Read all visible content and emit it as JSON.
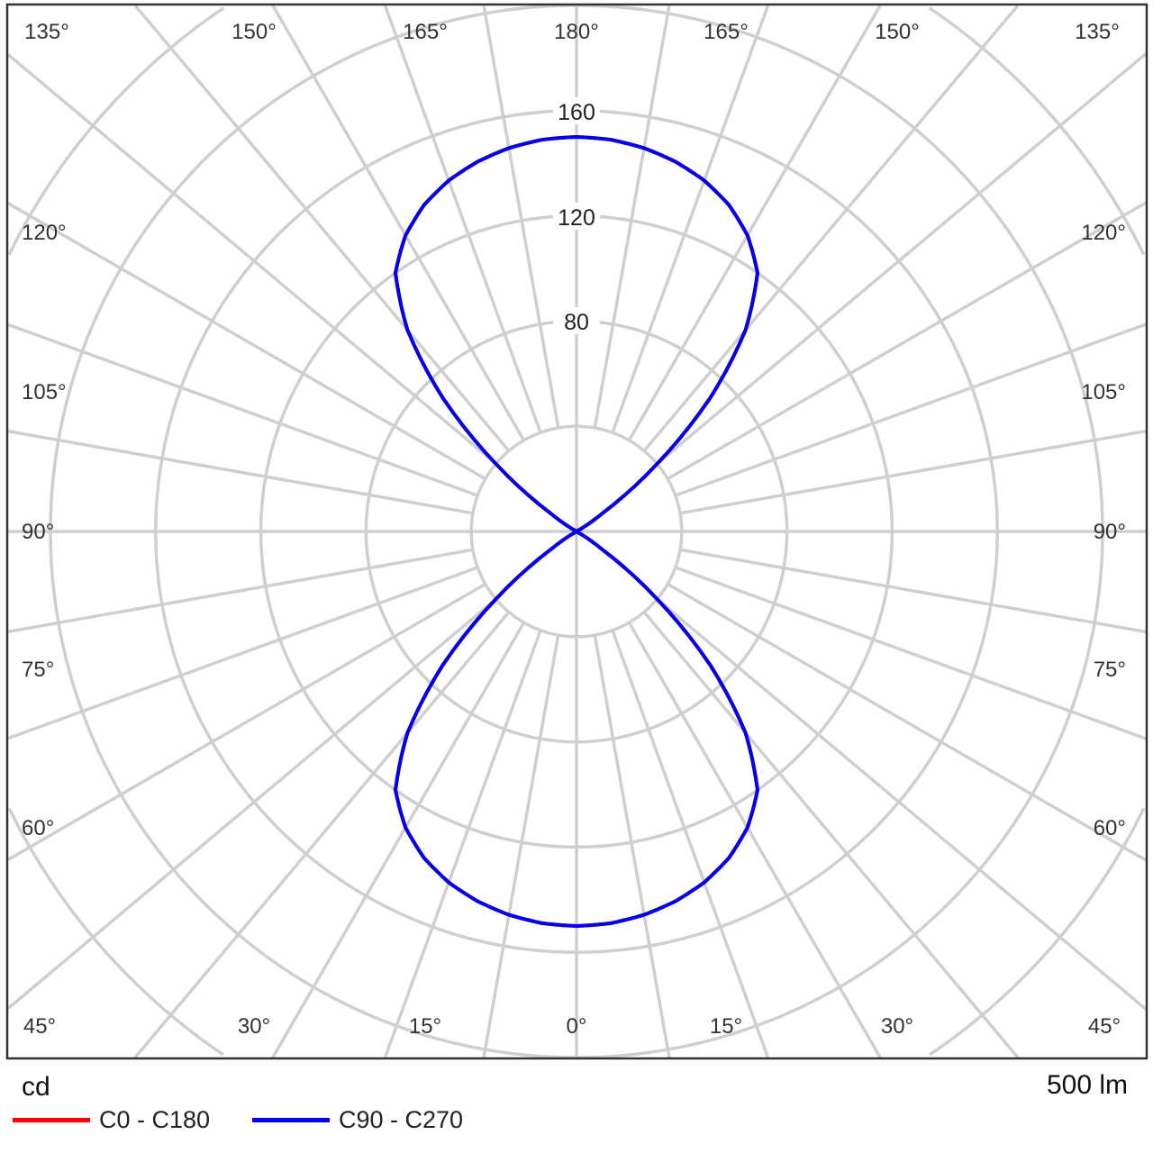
{
  "chart_data": {
    "type": "polar",
    "unit_label": "cd",
    "flux_label": "500 lm",
    "radial_ticks": [
      40,
      80,
      120,
      160,
      200,
      240
    ],
    "radial_tick_labels": [
      "80",
      "120",
      "160"
    ],
    "angle_labels_top": [
      "135°",
      "150°",
      "165°",
      "180°",
      "165°",
      "150°",
      "135°"
    ],
    "angle_labels_side": [
      "120°",
      "105°",
      "90°",
      "75°",
      "60°"
    ],
    "angle_labels_bottom": [
      "45°",
      "30°",
      "15°",
      "0°",
      "15°",
      "30°",
      "45°"
    ],
    "angles_deg": [
      0,
      5,
      10,
      15,
      20,
      25,
      30,
      35,
      40,
      45,
      50,
      55,
      60,
      90
    ],
    "series": [
      {
        "name": "C0 - C180",
        "color": "#ff0000",
        "values": [
          150,
          149.5,
          148,
          145.5,
          142,
          137,
          130,
          120,
          100,
          72,
          40,
          12,
          0,
          0
        ]
      },
      {
        "name": "C90 - C270",
        "color": "#0000ee",
        "values": [
          150,
          149.5,
          148,
          145.5,
          142,
          137,
          130,
          120,
          100,
          72,
          40,
          12,
          0,
          0
        ]
      }
    ],
    "grid": true,
    "legend": "bottom-left"
  }
}
